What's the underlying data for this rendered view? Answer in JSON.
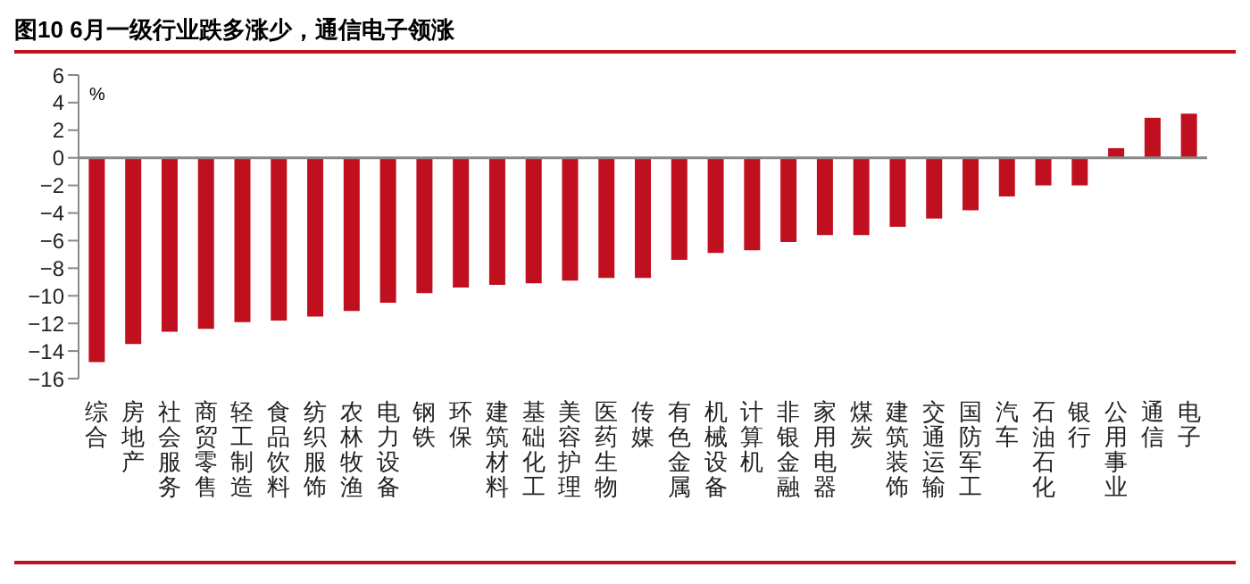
{
  "chart_data": {
    "type": "bar",
    "title": "图10    6月一级行业跌多涨少，通信电子领涨",
    "ylabel": "%",
    "categories": [
      "综合",
      "房地产",
      "社会服务",
      "商贸零售",
      "轻工制造",
      "食品饮料",
      "纺织服饰",
      "农林牧渔",
      "电力设备",
      "钢铁",
      "环保",
      "建筑材料",
      "基础化工",
      "美容护理",
      "医药生物",
      "传媒",
      "有色金属",
      "机械设备",
      "计算机",
      "非银金融",
      "家用电器",
      "煤炭",
      "建筑装饰",
      "交通运输",
      "国防军工",
      "汽车",
      "石油石化",
      "银行",
      "公用事业",
      "通信",
      "电子"
    ],
    "values": [
      -14.8,
      -13.5,
      -12.6,
      -12.4,
      -11.9,
      -11.8,
      -11.5,
      -11.1,
      -10.5,
      -9.8,
      -9.4,
      -9.2,
      -9.1,
      -8.9,
      -8.7,
      -8.7,
      -7.4,
      -6.9,
      -6.7,
      -6.1,
      -5.6,
      -5.6,
      -5.0,
      -4.4,
      -3.8,
      -2.8,
      -2.0,
      -2.0,
      0.7,
      2.9,
      3.2
    ],
    "color": "#c0101f",
    "ylim": [
      -16,
      6
    ],
    "yticks": [
      -16,
      -14,
      -12,
      -10,
      -8,
      -6,
      -4,
      -2,
      0,
      2,
      4,
      6
    ],
    "legend": false
  }
}
